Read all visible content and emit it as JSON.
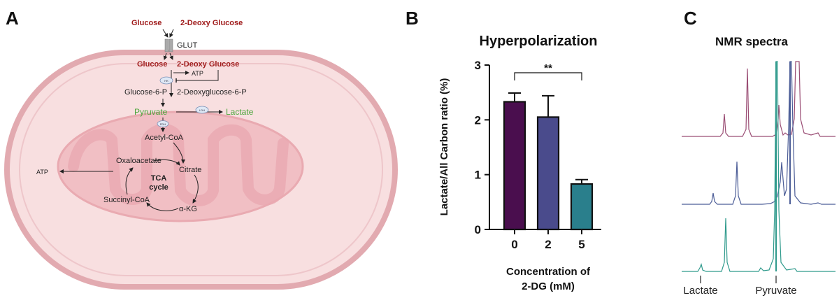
{
  "panel_a": {
    "letter": "A",
    "glucose_out": "Glucose",
    "deoxy_out": "2-Deoxy Glucose",
    "glut": "GLUT",
    "glucose_in": "Glucose",
    "deoxy_in": "2-Deoxy Glucose",
    "hk": "HK",
    "atp_top": "ATP",
    "g6p": "Glucose-6-P",
    "dg6p": "2-Deoxyglucose-6-P",
    "pyruvate": "Pyruvate",
    "ldh": "LDH",
    "lactate": "Lactate",
    "pdh": "PDH",
    "acetyl": "Acetyl-CoA",
    "oxaloacetate": "Oxaloacetate",
    "citrate": "Citrate",
    "tca1": "TCA",
    "tca2": "cycle",
    "succinyl": "Succinyl-CoA",
    "akg": "α-KG",
    "atp_left": "ATP",
    "colors": {
      "red_label": "#a01c1c",
      "green_label": "#4aa63a",
      "cell_fill": "#f8dfe0",
      "mito_fill": "#f1bfc4"
    }
  },
  "panel_b": {
    "letter": "B",
    "title": "Hyperpolarization",
    "ylabel": "Lactate/All Carbon ratio (%)",
    "xlabel_line1": "Concentration of",
    "xlabel_line2": "2-DG (mM)",
    "significance": "**"
  },
  "panel_c": {
    "letter": "C",
    "title": "NMR spectra",
    "label_lactate": "Lactate",
    "label_pyruvate": "Pyruvate",
    "colors": [
      "#9a4d74",
      "#4c5d97",
      "#2f9a8c"
    ]
  },
  "chart_data": {
    "type": "bar",
    "title": "Hyperpolarization",
    "xlabel": "Concentration of 2-DG (mM)",
    "ylabel": "Lactate/All Carbon ratio (%)",
    "categories": [
      "0",
      "2",
      "5"
    ],
    "values": [
      2.33,
      2.05,
      0.83
    ],
    "errors": [
      0.16,
      0.39,
      0.08
    ],
    "ylim": [
      0,
      3
    ],
    "yticks": [
      "0",
      "1",
      "2",
      "3"
    ],
    "bar_colors": [
      "#4a0e4e",
      "#4a4b8c",
      "#2a7f8c"
    ],
    "grid": false
  }
}
